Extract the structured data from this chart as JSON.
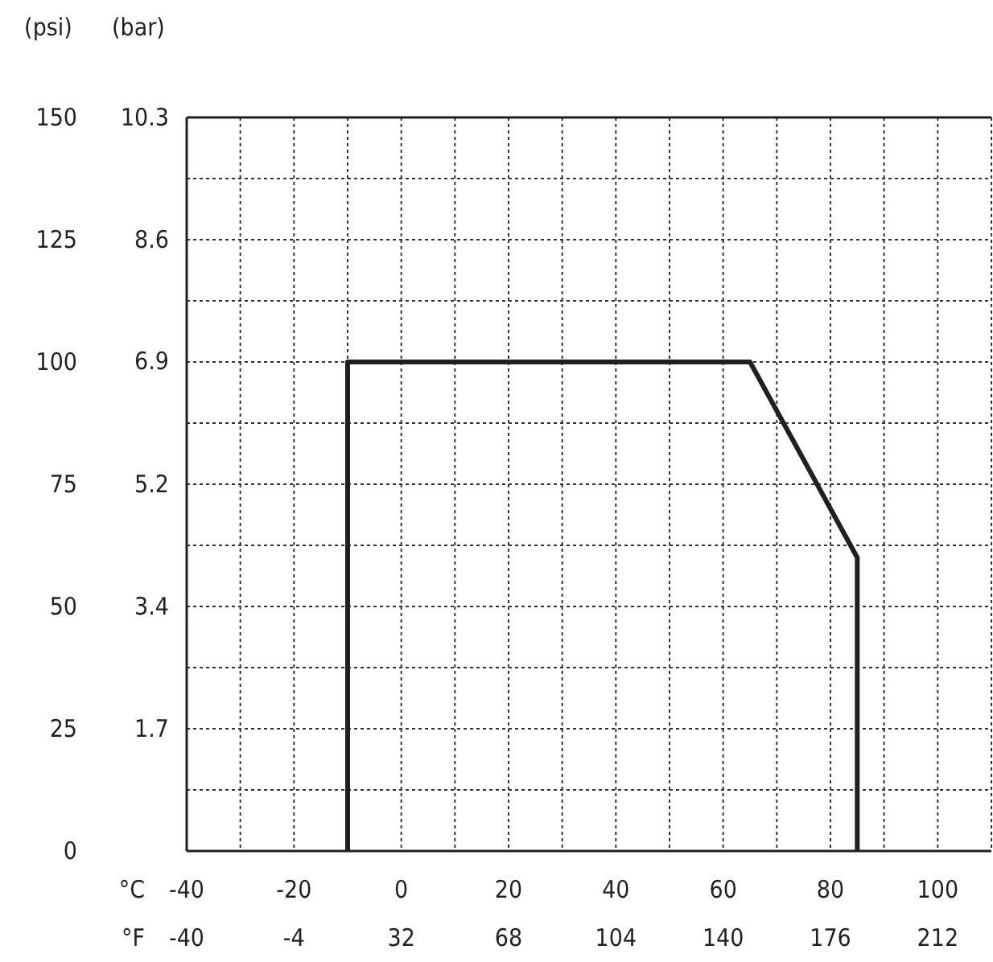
{
  "chart_data": {
    "type": "line",
    "xlabel": "°C",
    "x2label": "°F",
    "ylabel": "(psi)",
    "y2label": "(bar)",
    "xlim": [
      -40,
      110
    ],
    "xticks": [
      -40,
      {
        "value": -30,
        "label": null
      },
      -20,
      {
        "value": -10,
        "label": null
      },
      0,
      {
        "value": 10,
        "label": null
      },
      20,
      {
        "value": 30,
        "label": null
      },
      40,
      {
        "value": 50,
        "label": null
      },
      60,
      {
        "value": 70,
        "label": null
      },
      80,
      {
        "value": 90,
        "label": null
      },
      100,
      {
        "value": 110,
        "label": null
      }
    ],
    "x2lim": [
      -40,
      230
    ],
    "x2ticks": [
      -40,
      -4,
      32,
      68,
      104,
      140,
      176,
      212
    ],
    "ylim": [
      0,
      150
    ],
    "yticks": [
      0,
      {
        "value": 12.5,
        "label": null
      },
      25,
      {
        "value": 37.5,
        "label": null
      },
      50,
      {
        "value": 62.5,
        "label": null
      },
      75,
      {
        "value": 87.5,
        "label": null
      },
      100,
      {
        "value": 112.5,
        "label": null
      },
      125,
      {
        "value": 137.5,
        "label": null
      },
      150
    ],
    "y2lim": [
      0,
      10.34
    ],
    "y2ticks": [
      {
        "value": 1.72,
        "label": "1.7"
      },
      {
        "value": 3.45,
        "label": "3.4"
      },
      {
        "value": 5.17,
        "label": "5.2"
      },
      {
        "value": 6.9,
        "label": "6.9"
      },
      {
        "value": 8.62,
        "label": "8.6"
      },
      {
        "value": 10.34,
        "label": "10.3"
      }
    ],
    "grid": true,
    "marker": "none",
    "line_style": "solid",
    "series": [
      {
        "color": "#231f20",
        "x": [
          -10,
          -10,
          65,
          85,
          85
        ],
        "values": [
          0,
          100,
          100,
          60,
          0
        ]
      }
    ]
  }
}
